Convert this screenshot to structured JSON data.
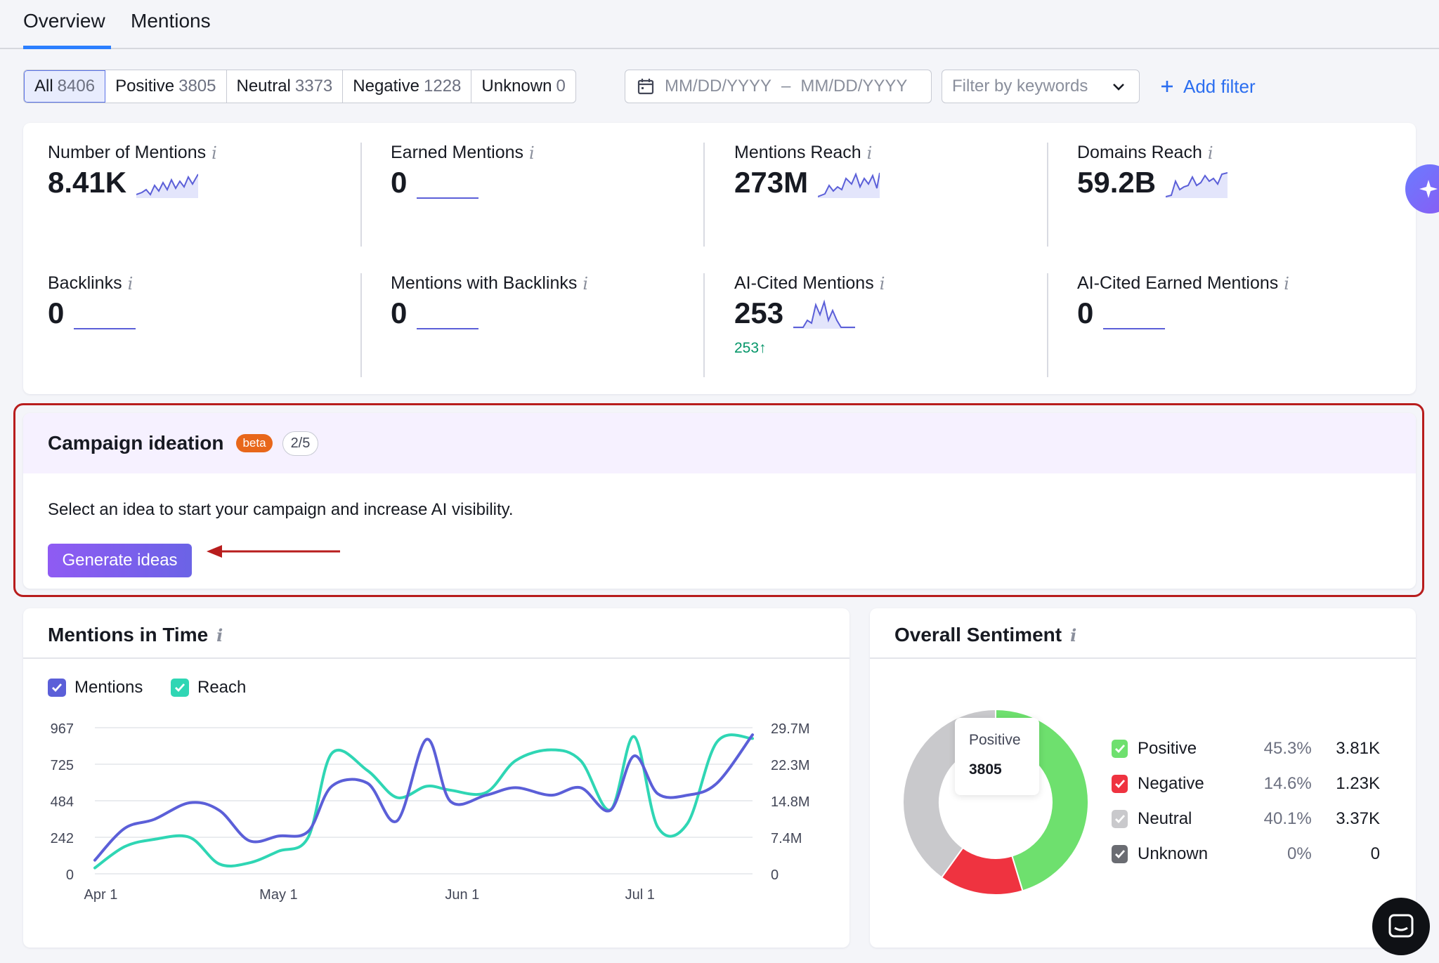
{
  "tabs": [
    {
      "label": "Overview",
      "active": true
    },
    {
      "label": "Mentions",
      "active": false
    }
  ],
  "filters": {
    "segments": [
      {
        "label": "All",
        "count": "8406",
        "active": true
      },
      {
        "label": "Positive",
        "count": "3805"
      },
      {
        "label": "Neutral",
        "count": "3373"
      },
      {
        "label": "Negative",
        "count": "1228"
      },
      {
        "label": "Unknown",
        "count": "0"
      }
    ],
    "date_start": "MM/DD/YYYY",
    "date_sep": "–",
    "date_end": "MM/DD/YYYY",
    "keywords_placeholder": "Filter by keywords",
    "add_filter": "Add filter"
  },
  "metrics": [
    {
      "label": "Number of Mentions",
      "value": "8.41K",
      "sparkline": "yes"
    },
    {
      "label": "Earned Mentions",
      "value": "0",
      "sparkline": "flat"
    },
    {
      "label": "Mentions Reach",
      "value": "273M",
      "sparkline": "yes"
    },
    {
      "label": "Domains Reach",
      "value": "59.2B",
      "sparkline": "yes"
    },
    {
      "label": "Backlinks",
      "value": "0",
      "sparkline": "flat"
    },
    {
      "label": "Mentions with Backlinks",
      "value": "0",
      "sparkline": "flat"
    },
    {
      "label": "AI-Cited Mentions",
      "value": "253",
      "delta": "253↑",
      "sparkline": "yes"
    },
    {
      "label": "AI-Cited Earned Mentions",
      "value": "0",
      "sparkline": "flat"
    }
  ],
  "campaign": {
    "title": "Campaign ideation",
    "badge": "beta",
    "step": "2/5",
    "description": "Select an idea to start your campaign and increase AI visibility.",
    "button": "Generate ideas"
  },
  "mentions_in_time": {
    "title": "Mentions in Time",
    "legend": [
      {
        "label": "Mentions",
        "color": "#5b5fd8"
      },
      {
        "label": "Reach",
        "color": "#2fd6b4"
      }
    ]
  },
  "overall_sentiment": {
    "title": "Overall Sentiment",
    "tooltip_label": "Positive",
    "tooltip_value": "3805",
    "rows": [
      {
        "name": "Positive",
        "pct": "45.3%",
        "count": "3.81K",
        "color": "#6ee06e"
      },
      {
        "name": "Negative",
        "pct": "14.6%",
        "count": "1.23K",
        "color": "#ef3340"
      },
      {
        "name": "Neutral",
        "pct": "40.1%",
        "count": "3.37K",
        "color": "#c9c9cc"
      },
      {
        "name": "Unknown",
        "pct": "0%",
        "count": "0",
        "color": "#6a6c72"
      }
    ]
  },
  "chart_data": {
    "type": "line",
    "title": "Mentions in Time",
    "x_ticks": [
      "Apr 1",
      "May 1",
      "Jun 1",
      "Jul 1"
    ],
    "y_left_ticks": [
      "0",
      "242",
      "484",
      "725",
      "967"
    ],
    "y_right_ticks": [
      "0",
      "7.4M",
      "14.8M",
      "22.3M",
      "29.7M"
    ],
    "ylim_left": [
      0,
      967
    ],
    "ylim_right": [
      0,
      29700000
    ],
    "x_range": [
      "Mar 31",
      "Jul 20"
    ],
    "series": [
      {
        "name": "Mentions",
        "axis": "left",
        "color": "#5b5fd8",
        "points": [
          [
            "Mar 31",
            90
          ],
          [
            "Apr 5",
            300
          ],
          [
            "Apr 10",
            360
          ],
          [
            "Apr 16",
            470
          ],
          [
            "Apr 21",
            420
          ],
          [
            "Apr 26",
            220
          ],
          [
            "May 1",
            250
          ],
          [
            "May 6",
            280
          ],
          [
            "May 10",
            580
          ],
          [
            "May 16",
            600
          ],
          [
            "May 21",
            350
          ],
          [
            "May 26",
            890
          ],
          [
            "May 30",
            480
          ],
          [
            "Jun 5",
            520
          ],
          [
            "Jun 10",
            570
          ],
          [
            "Jun 16",
            520
          ],
          [
            "Jun 21",
            570
          ],
          [
            "Jun 26",
            420
          ],
          [
            "Jun 30",
            780
          ],
          [
            "Jul 4",
            530
          ],
          [
            "Jul 9",
            520
          ],
          [
            "Jul 14",
            600
          ],
          [
            "Jul 20",
            920
          ]
        ]
      },
      {
        "name": "Reach",
        "axis": "right",
        "color": "#2fd6b4",
        "points": [
          [
            "Mar 31",
            1200000
          ],
          [
            "Apr 5",
            5500000
          ],
          [
            "Apr 10",
            7000000
          ],
          [
            "Apr 16",
            7400000
          ],
          [
            "Apr 21",
            2000000
          ],
          [
            "Apr 26",
            2200000
          ],
          [
            "May 1",
            4600000
          ],
          [
            "May 6",
            7400000
          ],
          [
            "May 10",
            24500000
          ],
          [
            "May 16",
            21000000
          ],
          [
            "May 21",
            15500000
          ],
          [
            "May 26",
            17800000
          ],
          [
            "May 30",
            17000000
          ],
          [
            "Jun 5",
            16500000
          ],
          [
            "Jun 10",
            23000000
          ],
          [
            "Jun 16",
            25200000
          ],
          [
            "Jun 21",
            23000000
          ],
          [
            "Jun 26",
            13000000
          ],
          [
            "Jun 30",
            27900000
          ],
          [
            "Jul 4",
            9500000
          ],
          [
            "Jul 9",
            10200000
          ],
          [
            "Jul 14",
            26800000
          ],
          [
            "Jul 20",
            27500000
          ]
        ]
      }
    ]
  },
  "sentiment_chart": {
    "type": "pie",
    "slices": [
      {
        "label": "Positive",
        "value": 45.3,
        "color": "#6ee06e"
      },
      {
        "label": "Negative",
        "value": 14.6,
        "color": "#ef3340"
      },
      {
        "label": "Neutral",
        "value": 40.1,
        "color": "#c9c9cc"
      },
      {
        "label": "Unknown",
        "value": 0,
        "color": "#6a6c72"
      }
    ]
  }
}
